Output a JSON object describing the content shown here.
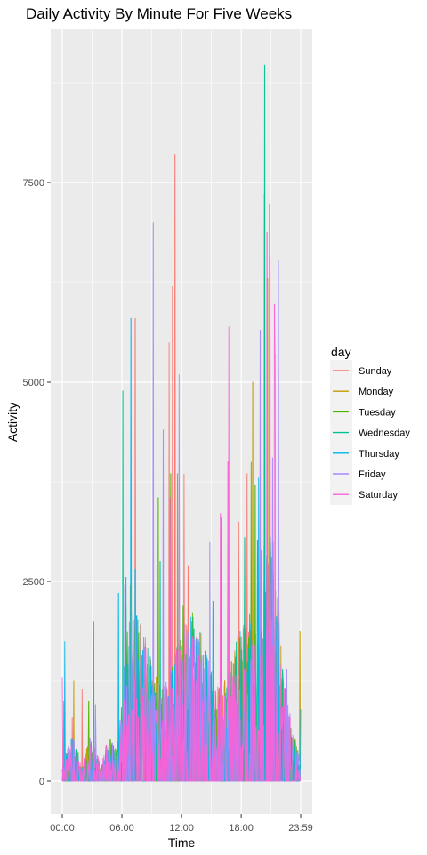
{
  "chart_data": {
    "type": "line",
    "title": "Daily Activity By Minute For Five Weeks",
    "xlabel": "Time",
    "ylabel": "Activity",
    "x_ticks": [
      "00:00",
      "06:00",
      "12:00",
      "18:00",
      "23:59"
    ],
    "x_tick_minutes": [
      0,
      360,
      720,
      1080,
      1439
    ],
    "xlim": [
      0,
      1439
    ],
    "y_ticks": [
      0,
      2500,
      5000,
      7500
    ],
    "ylim": [
      0,
      9000
    ],
    "grid": true,
    "legend_title": "day",
    "legend_position": "right",
    "series": [
      {
        "name": "Sunday",
        "color": "#F8766D",
        "peaks": [
          [
            60,
            800
          ],
          [
            120,
            1150
          ],
          [
            400,
            800
          ],
          [
            440,
            5800
          ],
          [
            645,
            5500
          ],
          [
            665,
            6200
          ],
          [
            680,
            7850
          ],
          [
            735,
            3850
          ],
          [
            760,
            2700
          ],
          [
            1065,
            3250
          ],
          [
            1115,
            3850
          ],
          [
            1200,
            2900
          ]
        ]
      },
      {
        "name": "Monday",
        "color": "#C49A00",
        "peaks": [
          [
            10,
            1000
          ],
          [
            70,
            1250
          ],
          [
            410,
            2450
          ],
          [
            695,
            3850
          ],
          [
            1150,
            5000
          ],
          [
            1240,
            6300
          ],
          [
            1250,
            7230
          ],
          [
            1320,
            1700
          ],
          [
            1435,
            1870
          ]
        ]
      },
      {
        "name": "Tuesday",
        "color": "#53B400",
        "peaks": [
          [
            160,
            1000
          ],
          [
            385,
            2200
          ],
          [
            580,
            3550
          ],
          [
            655,
            3850
          ],
          [
            730,
            2200
          ],
          [
            960,
            3300
          ],
          [
            1140,
            4000
          ],
          [
            1165,
            3700
          ],
          [
            1220,
            7350
          ],
          [
            1345,
            1150
          ]
        ]
      },
      {
        "name": "Wednesday",
        "color": "#00C094",
        "peaks": [
          [
            190,
            2000
          ],
          [
            365,
            4890
          ],
          [
            590,
            2750
          ],
          [
            650,
            2620
          ],
          [
            1100,
            3050
          ],
          [
            1178,
            3020
          ],
          [
            1222,
            8970
          ],
          [
            1330,
            1400
          ]
        ]
      },
      {
        "name": "Thursday",
        "color": "#00B6EB",
        "peaks": [
          [
            15,
            1750
          ],
          [
            340,
            2350
          ],
          [
            385,
            2550
          ],
          [
            415,
            5800
          ],
          [
            440,
            2650
          ],
          [
            910,
            2250
          ],
          [
            1185,
            3800
          ],
          [
            1218,
            2950
          ],
          [
            1439,
            900
          ]
        ]
      },
      {
        "name": "Friday",
        "color": "#A58AFF",
        "peaks": [
          [
            200,
            950
          ],
          [
            370,
            2450
          ],
          [
            550,
            7000
          ],
          [
            610,
            4400
          ],
          [
            705,
            5100
          ],
          [
            890,
            3000
          ],
          [
            1195,
            5650
          ],
          [
            1270,
            4050
          ],
          [
            1305,
            6530
          ],
          [
            1355,
            1400
          ]
        ]
      },
      {
        "name": "Saturday",
        "color": "#FB61D7",
        "peaks": [
          [
            0,
            1300
          ],
          [
            405,
            2000
          ],
          [
            650,
            3550
          ],
          [
            955,
            3350
          ],
          [
            1000,
            4000
          ],
          [
            1005,
            5700
          ],
          [
            1235,
            6870
          ],
          [
            1255,
            6550
          ],
          [
            1280,
            5980
          ],
          [
            1285,
            5350
          ],
          [
            1375,
            800
          ]
        ]
      }
    ]
  }
}
